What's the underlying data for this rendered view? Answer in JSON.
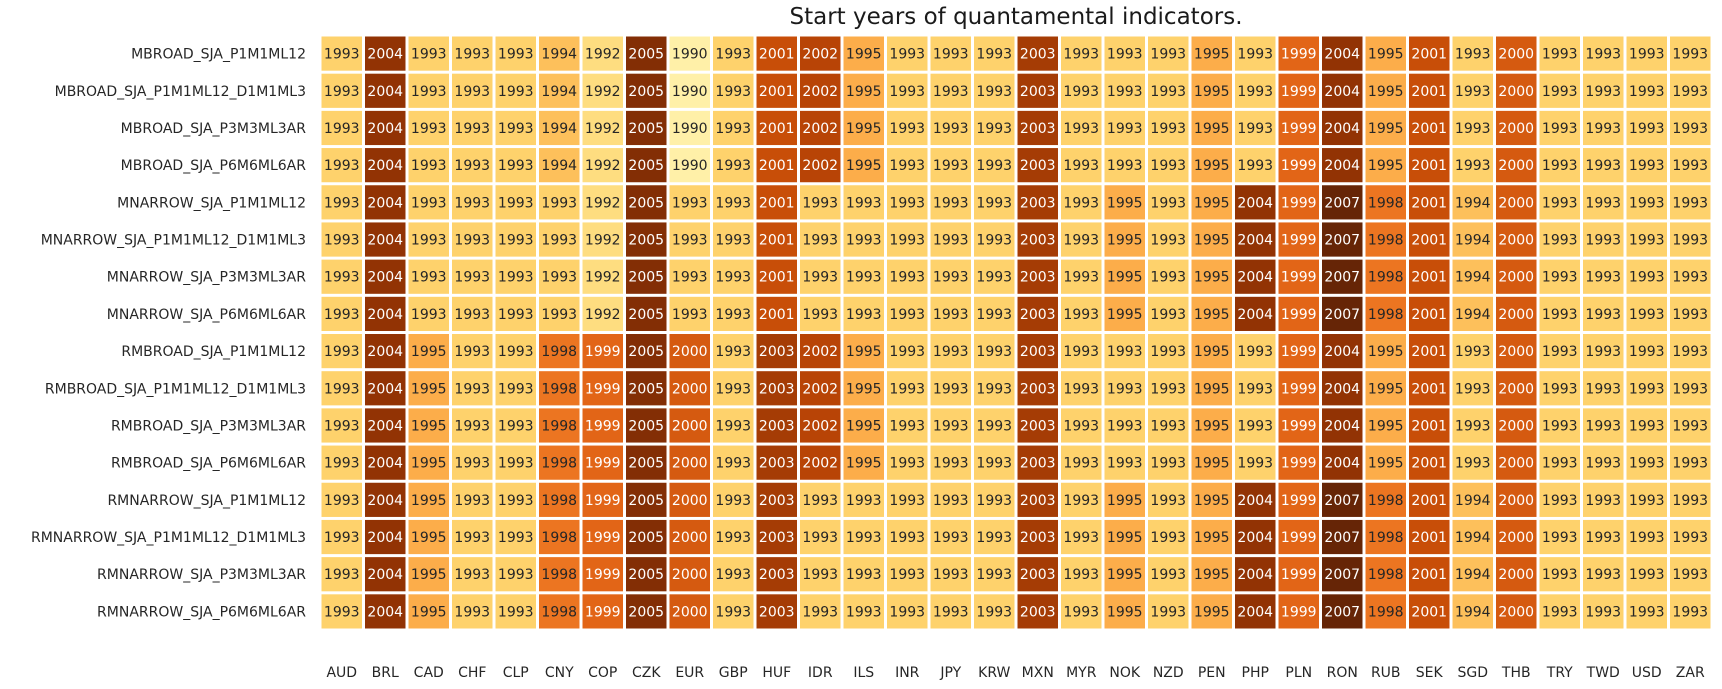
{
  "chart_data": {
    "type": "heatmap",
    "title": "Start years of quantamental indicators.",
    "xlabel": "",
    "ylabel": "",
    "colorbar": false,
    "color_scale": {
      "min": 1990,
      "max": 2007,
      "stops": [
        "#fff0a8",
        "#fed56f",
        "#fca13e",
        "#e96b1b",
        "#c44a06",
        "#8f3204",
        "#662506"
      ]
    },
    "columns": [
      "AUD",
      "BRL",
      "CAD",
      "CHF",
      "CLP",
      "CNY",
      "COP",
      "CZK",
      "EUR",
      "GBP",
      "HUF",
      "IDR",
      "ILS",
      "INR",
      "JPY",
      "KRW",
      "MXN",
      "MYR",
      "NOK",
      "NZD",
      "PEN",
      "PHP",
      "PLN",
      "RON",
      "RUB",
      "SEK",
      "SGD",
      "THB",
      "TRY",
      "TWD",
      "USD",
      "ZAR"
    ],
    "rows": [
      {
        "label": "MBROAD_SJA_P1M1ML12",
        "values": [
          1993,
          2004,
          1993,
          1993,
          1993,
          1994,
          1992,
          2005,
          1990,
          1993,
          2001,
          2002,
          1995,
          1993,
          1993,
          1993,
          2003,
          1993,
          1993,
          1993,
          1995,
          1993,
          1999,
          2004,
          1995,
          2001,
          1993,
          2000,
          1993,
          1993,
          1993,
          1993
        ]
      },
      {
        "label": "MBROAD_SJA_P1M1ML12_D1M1ML3",
        "values": [
          1993,
          2004,
          1993,
          1993,
          1993,
          1994,
          1992,
          2005,
          1990,
          1993,
          2001,
          2002,
          1995,
          1993,
          1993,
          1993,
          2003,
          1993,
          1993,
          1993,
          1995,
          1993,
          1999,
          2004,
          1995,
          2001,
          1993,
          2000,
          1993,
          1993,
          1993,
          1993
        ]
      },
      {
        "label": "MBROAD_SJA_P3M3ML3AR",
        "values": [
          1993,
          2004,
          1993,
          1993,
          1993,
          1994,
          1992,
          2005,
          1990,
          1993,
          2001,
          2002,
          1995,
          1993,
          1993,
          1993,
          2003,
          1993,
          1993,
          1993,
          1995,
          1993,
          1999,
          2004,
          1995,
          2001,
          1993,
          2000,
          1993,
          1993,
          1993,
          1993
        ]
      },
      {
        "label": "MBROAD_SJA_P6M6ML6AR",
        "values": [
          1993,
          2004,
          1993,
          1993,
          1993,
          1994,
          1992,
          2005,
          1990,
          1993,
          2001,
          2002,
          1995,
          1993,
          1993,
          1993,
          2003,
          1993,
          1993,
          1993,
          1995,
          1993,
          1999,
          2004,
          1995,
          2001,
          1993,
          2000,
          1993,
          1993,
          1993,
          1993
        ]
      },
      {
        "label": "MNARROW_SJA_P1M1ML12",
        "values": [
          1993,
          2004,
          1993,
          1993,
          1993,
          1993,
          1992,
          2005,
          1993,
          1993,
          2001,
          1993,
          1993,
          1993,
          1993,
          1993,
          2003,
          1993,
          1995,
          1993,
          1995,
          2004,
          1999,
          2007,
          1998,
          2001,
          1994,
          2000,
          1993,
          1993,
          1993,
          1993
        ]
      },
      {
        "label": "MNARROW_SJA_P1M1ML12_D1M1ML3",
        "values": [
          1993,
          2004,
          1993,
          1993,
          1993,
          1993,
          1992,
          2005,
          1993,
          1993,
          2001,
          1993,
          1993,
          1993,
          1993,
          1993,
          2003,
          1993,
          1995,
          1993,
          1995,
          2004,
          1999,
          2007,
          1998,
          2001,
          1994,
          2000,
          1993,
          1993,
          1993,
          1993
        ]
      },
      {
        "label": "MNARROW_SJA_P3M3ML3AR",
        "values": [
          1993,
          2004,
          1993,
          1993,
          1993,
          1993,
          1992,
          2005,
          1993,
          1993,
          2001,
          1993,
          1993,
          1993,
          1993,
          1993,
          2003,
          1993,
          1995,
          1993,
          1995,
          2004,
          1999,
          2007,
          1998,
          2001,
          1994,
          2000,
          1993,
          1993,
          1993,
          1993
        ]
      },
      {
        "label": "MNARROW_SJA_P6M6ML6AR",
        "values": [
          1993,
          2004,
          1993,
          1993,
          1993,
          1993,
          1992,
          2005,
          1993,
          1993,
          2001,
          1993,
          1993,
          1993,
          1993,
          1993,
          2003,
          1993,
          1995,
          1993,
          1995,
          2004,
          1999,
          2007,
          1998,
          2001,
          1994,
          2000,
          1993,
          1993,
          1993,
          1993
        ]
      },
      {
        "label": "RMBROAD_SJA_P1M1ML12",
        "values": [
          1993,
          2004,
          1995,
          1993,
          1993,
          1998,
          1999,
          2005,
          2000,
          1993,
          2003,
          2002,
          1995,
          1993,
          1993,
          1993,
          2003,
          1993,
          1993,
          1993,
          1995,
          1993,
          1999,
          2004,
          1995,
          2001,
          1993,
          2000,
          1993,
          1993,
          1993,
          1993
        ]
      },
      {
        "label": "RMBROAD_SJA_P1M1ML12_D1M1ML3",
        "values": [
          1993,
          2004,
          1995,
          1993,
          1993,
          1998,
          1999,
          2005,
          2000,
          1993,
          2003,
          2002,
          1995,
          1993,
          1993,
          1993,
          2003,
          1993,
          1993,
          1993,
          1995,
          1993,
          1999,
          2004,
          1995,
          2001,
          1993,
          2000,
          1993,
          1993,
          1993,
          1993
        ]
      },
      {
        "label": "RMBROAD_SJA_P3M3ML3AR",
        "values": [
          1993,
          2004,
          1995,
          1993,
          1993,
          1998,
          1999,
          2005,
          2000,
          1993,
          2003,
          2002,
          1995,
          1993,
          1993,
          1993,
          2003,
          1993,
          1993,
          1993,
          1995,
          1993,
          1999,
          2004,
          1995,
          2001,
          1993,
          2000,
          1993,
          1993,
          1993,
          1993
        ]
      },
      {
        "label": "RMBROAD_SJA_P6M6ML6AR",
        "values": [
          1993,
          2004,
          1995,
          1993,
          1993,
          1998,
          1999,
          2005,
          2000,
          1993,
          2003,
          2002,
          1995,
          1993,
          1993,
          1993,
          2003,
          1993,
          1993,
          1993,
          1995,
          1993,
          1999,
          2004,
          1995,
          2001,
          1993,
          2000,
          1993,
          1993,
          1993,
          1993
        ]
      },
      {
        "label": "RMNARROW_SJA_P1M1ML12",
        "values": [
          1993,
          2004,
          1995,
          1993,
          1993,
          1998,
          1999,
          2005,
          2000,
          1993,
          2003,
          1993,
          1993,
          1993,
          1993,
          1993,
          2003,
          1993,
          1995,
          1993,
          1995,
          2004,
          1999,
          2007,
          1998,
          2001,
          1994,
          2000,
          1993,
          1993,
          1993,
          1993
        ]
      },
      {
        "label": "RMNARROW_SJA_P1M1ML12_D1M1ML3",
        "values": [
          1993,
          2004,
          1995,
          1993,
          1993,
          1998,
          1999,
          2005,
          2000,
          1993,
          2003,
          1993,
          1993,
          1993,
          1993,
          1993,
          2003,
          1993,
          1995,
          1993,
          1995,
          2004,
          1999,
          2007,
          1998,
          2001,
          1994,
          2000,
          1993,
          1993,
          1993,
          1993
        ]
      },
      {
        "label": "RMNARROW_SJA_P3M3ML3AR",
        "values": [
          1993,
          2004,
          1995,
          1993,
          1993,
          1998,
          1999,
          2005,
          2000,
          1993,
          2003,
          1993,
          1993,
          1993,
          1993,
          1993,
          2003,
          1993,
          1995,
          1993,
          1995,
          2004,
          1999,
          2007,
          1998,
          2001,
          1994,
          2000,
          1993,
          1993,
          1993,
          1993
        ]
      },
      {
        "label": "RMNARROW_SJA_P6M6ML6AR",
        "values": [
          1993,
          2004,
          1995,
          1993,
          1993,
          1998,
          1999,
          2005,
          2000,
          1993,
          2003,
          1993,
          1993,
          1993,
          1993,
          1993,
          2003,
          1993,
          1995,
          1993,
          1995,
          2004,
          1999,
          2007,
          1998,
          2001,
          1994,
          2000,
          1993,
          1993,
          1993,
          1993
        ]
      }
    ]
  }
}
